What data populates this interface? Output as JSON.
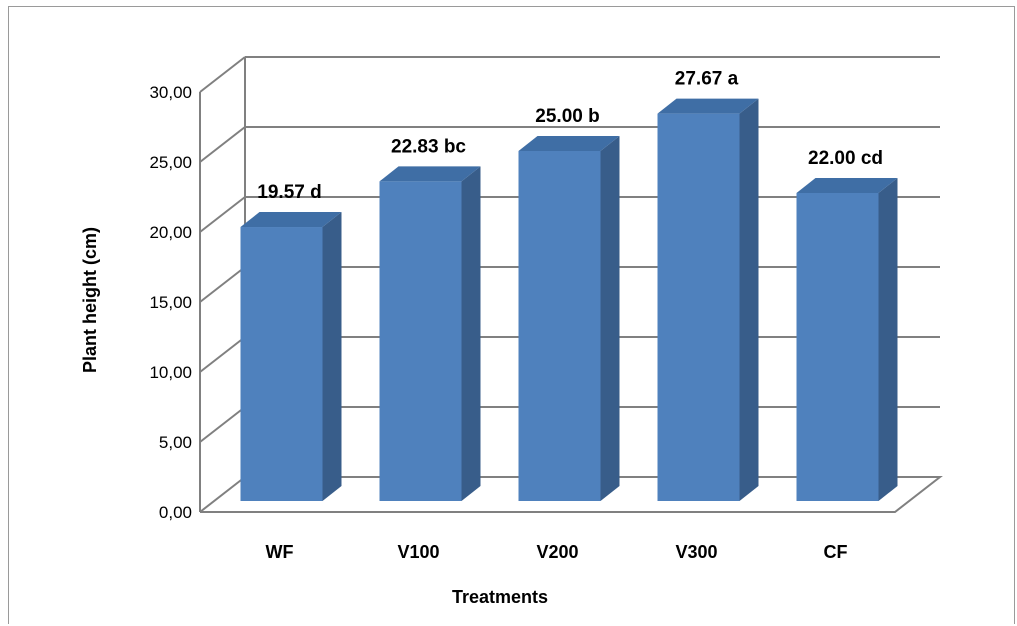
{
  "chart_data": {
    "type": "bar",
    "title": "",
    "xlabel": "Treatments",
    "ylabel": "Plant height (cm)",
    "categories": [
      "WF",
      "V100",
      "V200",
      "V300",
      "CF"
    ],
    "values": [
      19.57,
      22.83,
      25.0,
      27.67,
      22.0
    ],
    "data_labels": [
      "19.57 d",
      "22.83 bc",
      "25.00 b",
      "27.67 a",
      "22.00 cd"
    ],
    "ylim": [
      0,
      30
    ],
    "yticks": [
      "0,00",
      "5,00",
      "10,00",
      "15,00",
      "20,00",
      "25,00",
      "30,00"
    ],
    "grid": true,
    "legend": "none",
    "style": "3d-column",
    "colors": {
      "bar_front": "#4f81bd",
      "bar_side": "#385d8a",
      "bar_top": "#3f6ea5",
      "grid": "#808080"
    }
  }
}
